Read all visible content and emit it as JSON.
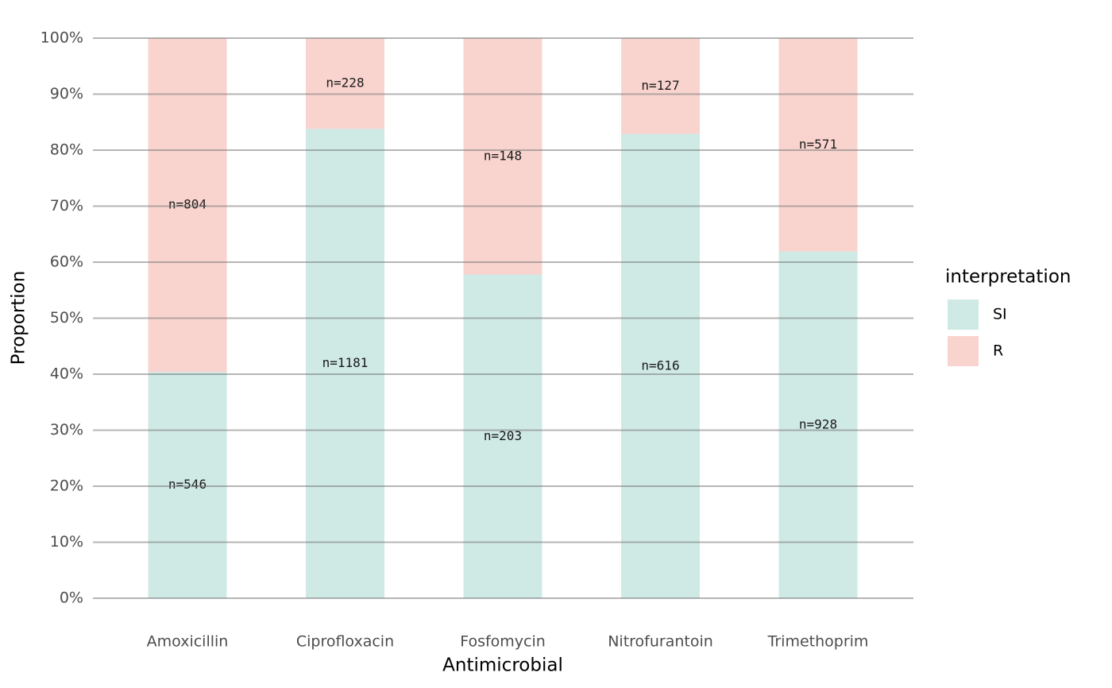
{
  "chart_data": {
    "type": "stacked_bar",
    "x_label": "Antimicrobial",
    "y_label": "Proportion",
    "categories": [
      "Amoxicillin",
      "Ciprofloxacin",
      "Fosfomycin",
      "Nitrofurantoin",
      "Trimethoprim"
    ],
    "series": [
      {
        "name": "SI",
        "color": "#cfe9e5",
        "values": [
          40.4,
          83.8,
          57.8,
          82.9,
          61.9
        ],
        "count_labels": [
          "n=546",
          "n=1181",
          "n=203",
          "n=616",
          "n=928"
        ]
      },
      {
        "name": "R",
        "color": "#f9d4cf",
        "values": [
          59.6,
          16.2,
          42.2,
          17.1,
          38.1
        ],
        "count_labels": [
          "n=804",
          "n=228",
          "n=148",
          "n=127",
          "n=571"
        ]
      }
    ],
    "legend_title": "interpretation",
    "legend_position": "right",
    "ylim": [
      0,
      100
    ],
    "yticks": [
      {
        "value": 0,
        "label": "0%"
      },
      {
        "value": 10,
        "label": "10%"
      },
      {
        "value": 20,
        "label": "20%"
      },
      {
        "value": 30,
        "label": "30%"
      },
      {
        "value": 40,
        "label": "40%"
      },
      {
        "value": 50,
        "label": "50%"
      },
      {
        "value": 60,
        "label": "60%"
      },
      {
        "value": 70,
        "label": "70%"
      },
      {
        "value": 80,
        "label": "80%"
      },
      {
        "value": 90,
        "label": "90%"
      },
      {
        "value": 100,
        "label": "100%"
      }
    ],
    "grid": true
  }
}
